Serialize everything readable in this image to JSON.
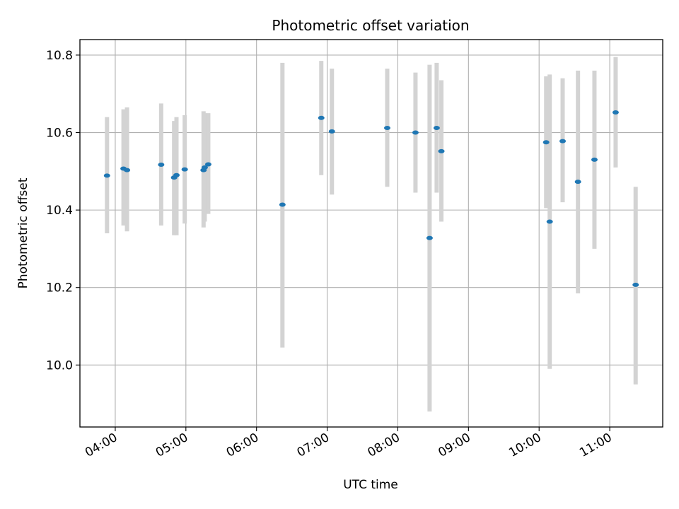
{
  "chart_data": {
    "type": "scatter",
    "title": "Photometric offset variation",
    "xlabel": "UTC time",
    "ylabel": "Photometric offset",
    "x_axis_type": "time",
    "xlim": [
      "03:30",
      "11:45"
    ],
    "ylim": [
      9.84,
      10.84
    ],
    "x_ticks": [
      "04:00",
      "05:00",
      "06:00",
      "07:00",
      "08:00",
      "09:00",
      "10:00",
      "11:00"
    ],
    "y_ticks": [
      10.0,
      10.2,
      10.4,
      10.6,
      10.8
    ],
    "y_tick_labels": [
      "10.0",
      "10.2",
      "10.4",
      "10.6",
      "10.8"
    ],
    "grid": true,
    "legend": "none",
    "colors": {
      "point": "#1f77b4",
      "errorbar": "#d3d3d3",
      "grid": "#b0b0b0",
      "axes": "#000000"
    },
    "points": [
      {
        "x": "03:53",
        "y": 10.489,
        "ylow": 10.34,
        "yhigh": 10.64
      },
      {
        "x": "04:07",
        "y": 10.507,
        "ylow": 10.36,
        "yhigh": 10.66
      },
      {
        "x": "04:10",
        "y": 10.503,
        "ylow": 10.345,
        "yhigh": 10.665
      },
      {
        "x": "04:39",
        "y": 10.517,
        "ylow": 10.36,
        "yhigh": 10.675
      },
      {
        "x": "04:50",
        "y": 10.484,
        "ylow": 10.335,
        "yhigh": 10.63
      },
      {
        "x": "04:52",
        "y": 10.49,
        "ylow": 10.335,
        "yhigh": 10.64
      },
      {
        "x": "04:59",
        "y": 10.505,
        "ylow": 10.365,
        "yhigh": 10.645
      },
      {
        "x": "05:15",
        "y": 10.503,
        "ylow": 10.355,
        "yhigh": 10.655
      },
      {
        "x": "05:16",
        "y": 10.51,
        "ylow": 10.37,
        "yhigh": 10.65
      },
      {
        "x": "05:19",
        "y": 10.518,
        "ylow": 10.39,
        "yhigh": 10.65
      },
      {
        "x": "06:22",
        "y": 10.414,
        "ylow": 10.045,
        "yhigh": 10.78
      },
      {
        "x": "06:55",
        "y": 10.638,
        "ylow": 10.49,
        "yhigh": 10.785
      },
      {
        "x": "07:04",
        "y": 10.603,
        "ylow": 10.44,
        "yhigh": 10.765
      },
      {
        "x": "07:51",
        "y": 10.612,
        "ylow": 10.46,
        "yhigh": 10.765
      },
      {
        "x": "08:15",
        "y": 10.6,
        "ylow": 10.445,
        "yhigh": 10.755
      },
      {
        "x": "08:27",
        "y": 10.328,
        "ylow": 9.88,
        "yhigh": 10.775
      },
      {
        "x": "08:33",
        "y": 10.612,
        "ylow": 10.445,
        "yhigh": 10.78
      },
      {
        "x": "08:37",
        "y": 10.552,
        "ylow": 10.37,
        "yhigh": 10.735
      },
      {
        "x": "10:06",
        "y": 10.575,
        "ylow": 10.405,
        "yhigh": 10.745
      },
      {
        "x": "10:09",
        "y": 10.37,
        "ylow": 9.99,
        "yhigh": 10.75
      },
      {
        "x": "10:20",
        "y": 10.578,
        "ylow": 10.42,
        "yhigh": 10.74
      },
      {
        "x": "10:33",
        "y": 10.473,
        "ylow": 10.185,
        "yhigh": 10.76
      },
      {
        "x": "10:47",
        "y": 10.53,
        "ylow": 10.3,
        "yhigh": 10.76
      },
      {
        "x": "11:05",
        "y": 10.652,
        "ylow": 10.51,
        "yhigh": 10.795
      },
      {
        "x": "11:22",
        "y": 10.207,
        "ylow": 9.95,
        "yhigh": 10.46
      }
    ]
  }
}
